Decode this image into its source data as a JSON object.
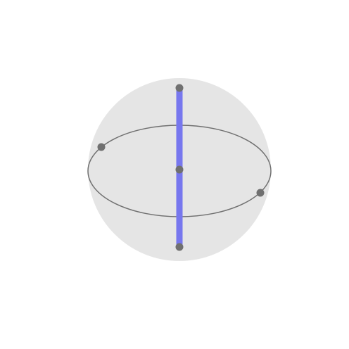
{
  "diagram": {
    "type": "bloch-sphere",
    "colors": {
      "background": "#ffffff",
      "sphere_fill": "#e5e5e5",
      "equator_stroke": "#707070",
      "axis": "#7777ee",
      "point": "#707070"
    },
    "points": [
      {
        "name": "top-pole-point"
      },
      {
        "name": "center-point"
      },
      {
        "name": "bottom-pole-point"
      },
      {
        "name": "equator-left-point"
      },
      {
        "name": "equator-right-point"
      }
    ]
  }
}
